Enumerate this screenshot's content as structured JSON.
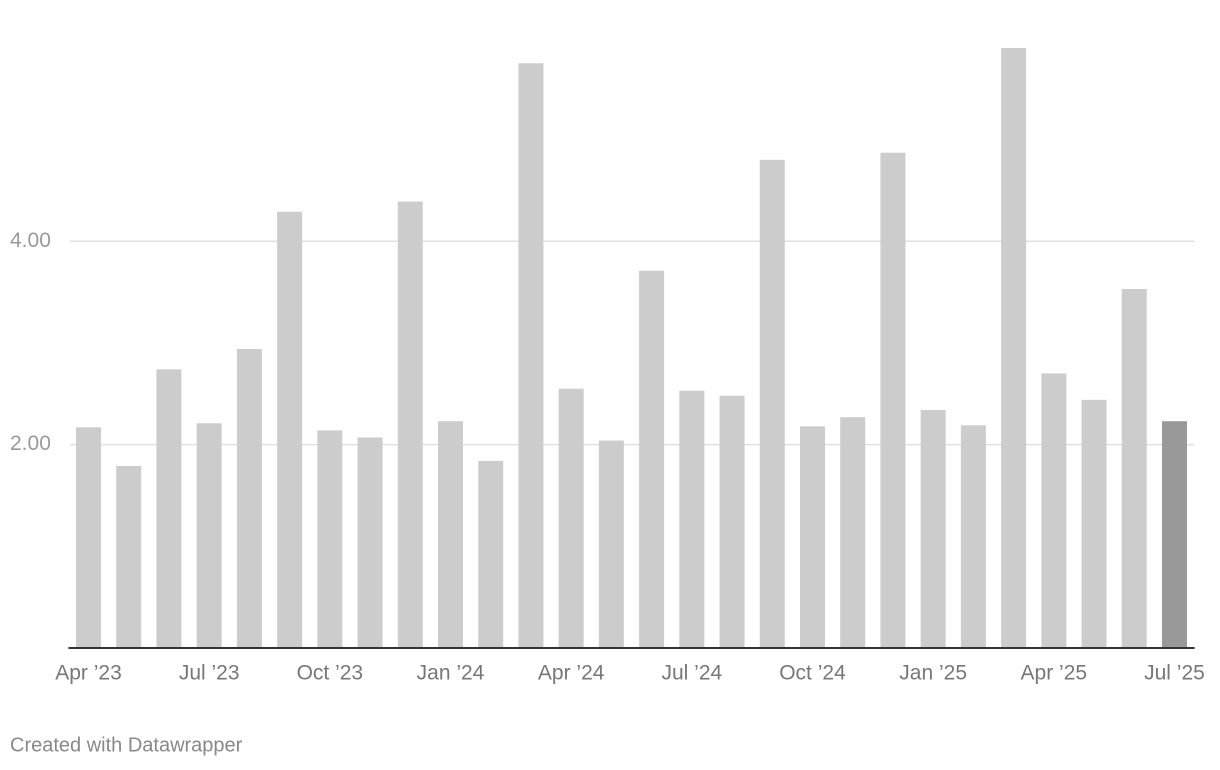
{
  "chart_data": {
    "type": "bar",
    "categories": [
      "Apr ’23",
      null,
      null,
      "Jul ’23",
      null,
      null,
      "Oct ’23",
      null,
      null,
      "Jan ’24",
      null,
      null,
      "Apr ’24",
      null,
      null,
      "Jul ’24",
      null,
      null,
      "Oct ’24",
      null,
      null,
      "Jan ’25",
      null,
      null,
      "Apr ’25",
      null,
      null,
      "Jul ’25"
    ],
    "values": [
      2.17,
      1.79,
      2.74,
      2.21,
      2.94,
      4.29,
      2.14,
      2.07,
      4.39,
      2.23,
      1.84,
      5.75,
      2.55,
      2.04,
      3.71,
      2.53,
      2.48,
      4.8,
      2.18,
      2.27,
      4.87,
      2.34,
      2.19,
      5.9,
      2.7,
      2.44,
      3.53,
      2.23
    ],
    "colors": [
      "#cccccc",
      "#cccccc",
      "#cccccc",
      "#cccccc",
      "#cccccc",
      "#cccccc",
      "#cccccc",
      "#cccccc",
      "#cccccc",
      "#cccccc",
      "#cccccc",
      "#cccccc",
      "#cccccc",
      "#cccccc",
      "#cccccc",
      "#cccccc",
      "#cccccc",
      "#cccccc",
      "#cccccc",
      "#cccccc",
      "#cccccc",
      "#cccccc",
      "#cccccc",
      "#cccccc",
      "#cccccc",
      "#cccccc",
      "#cccccc",
      "#999999"
    ],
    "ylim": [
      0,
      5.9
    ],
    "yticks": [
      {
        "value": 2,
        "label": "2.00"
      },
      {
        "value": 4,
        "label": "4.00"
      }
    ],
    "grid": true,
    "credit": "Created with Datawrapper"
  }
}
